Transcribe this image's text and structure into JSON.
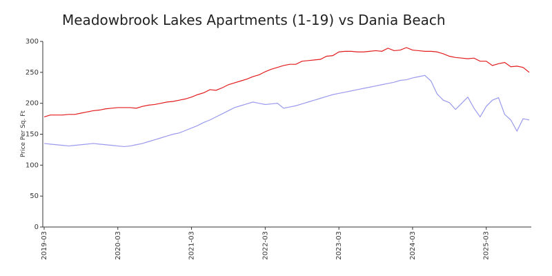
{
  "chart_data": {
    "type": "line",
    "title": "Meadowbrook Lakes Apartments (1-19) vs Dania Beach",
    "y_label": "Price Per Sq. Ft",
    "categories": [
      "2019-03",
      null,
      null,
      null,
      null,
      null,
      null,
      null,
      null,
      null,
      null,
      null,
      "2020-03",
      null,
      null,
      null,
      null,
      null,
      null,
      null,
      null,
      null,
      null,
      null,
      "2021-03",
      null,
      null,
      null,
      null,
      null,
      null,
      null,
      null,
      null,
      null,
      null,
      "2022-03",
      null,
      null,
      null,
      null,
      null,
      null,
      null,
      null,
      null,
      null,
      null,
      "2023-03",
      null,
      null,
      null,
      null,
      null,
      null,
      null,
      null,
      null,
      null,
      null,
      "2024-03",
      null,
      null,
      null,
      null,
      null,
      null,
      null,
      null,
      null,
      null,
      null,
      "2025-03",
      null,
      null,
      null,
      null,
      null,
      null,
      null
    ],
    "series": [
      {
        "color": "#e31a1c",
        "values": [
          178,
          181,
          181,
          181,
          182,
          182,
          184,
          186,
          188,
          189,
          191,
          192,
          193,
          193,
          193,
          192,
          195,
          197,
          198,
          200,
          202,
          203,
          205,
          207,
          210,
          214,
          217,
          222,
          221,
          225,
          230,
          233,
          236,
          239,
          243,
          246,
          251,
          255,
          258,
          261,
          263,
          263,
          268,
          269,
          270,
          271,
          276,
          277,
          283,
          284,
          284,
          283,
          283,
          284,
          285,
          284,
          289,
          285,
          286,
          290,
          286,
          285,
          284,
          284,
          283,
          280,
          276,
          274,
          273,
          272,
          273,
          268,
          268,
          261,
          264,
          266,
          259,
          260,
          258,
          250
        ]
      },
      {
        "color": "#9999ee",
        "values": [
          135,
          134,
          133,
          132,
          131,
          132,
          133,
          134,
          135,
          134,
          133,
          132,
          131,
          130,
          131,
          133,
          135,
          138,
          141,
          144,
          147,
          150,
          152,
          156,
          160,
          164,
          169,
          173,
          178,
          183,
          188,
          193,
          196,
          199,
          202,
          200,
          198,
          199,
          200,
          192,
          194,
          196,
          199,
          202,
          205,
          208,
          211,
          214,
          216,
          218,
          220,
          222,
          224,
          226,
          228,
          230,
          232,
          234,
          237,
          238,
          241,
          243,
          245,
          236,
          215,
          205,
          201,
          190,
          200,
          210,
          192,
          178,
          195,
          205,
          209,
          182,
          173,
          155,
          175,
          173
        ]
      }
    ],
    "ylim": [
      0,
      300
    ],
    "yticks": [
      0,
      50,
      100,
      150,
      200,
      250,
      300
    ]
  }
}
